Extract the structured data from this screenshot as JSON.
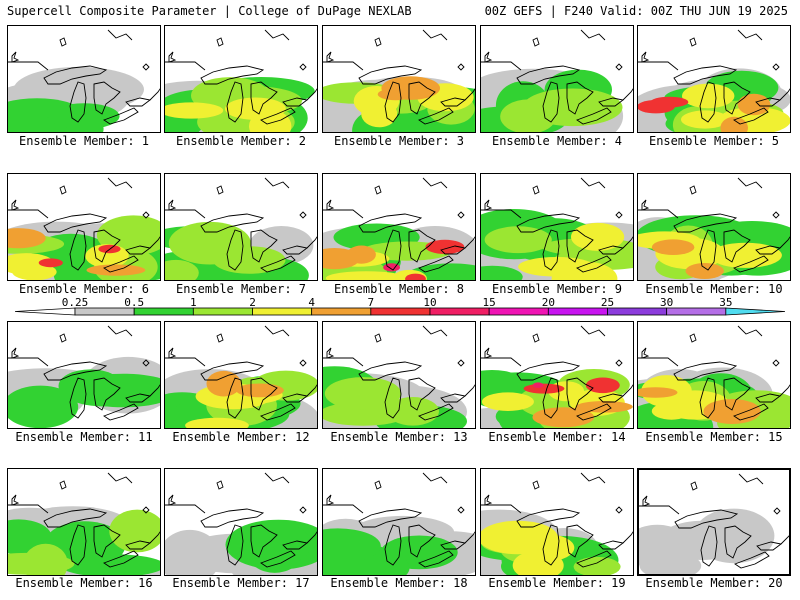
{
  "header": {
    "title": "Supercell Composite Parameter | College of DuPage NEXLAB",
    "valid": "00Z GEFS | F240 Valid: 00Z THU JUN 19 2025"
  },
  "members": [
    {
      "label": "Ensemble Member: 1",
      "intensity": 1
    },
    {
      "label": "Ensemble Member: 2",
      "intensity": 3
    },
    {
      "label": "Ensemble Member: 3",
      "intensity": 4
    },
    {
      "label": "Ensemble Member: 4",
      "intensity": 2
    },
    {
      "label": "Ensemble Member: 5",
      "intensity": 5
    },
    {
      "label": "Ensemble Member: 6",
      "intensity": 5
    },
    {
      "label": "Ensemble Member: 7",
      "intensity": 2
    },
    {
      "label": "Ensemble Member: 8",
      "intensity": 6
    },
    {
      "label": "Ensemble Member: 9",
      "intensity": 3
    },
    {
      "label": "Ensemble Member: 10",
      "intensity": 4
    },
    {
      "label": "Ensemble Member: 11",
      "intensity": 1
    },
    {
      "label": "Ensemble Member: 12",
      "intensity": 4
    },
    {
      "label": "Ensemble Member: 13",
      "intensity": 2
    },
    {
      "label": "Ensemble Member: 14",
      "intensity": 6
    },
    {
      "label": "Ensemble Member: 15",
      "intensity": 4
    },
    {
      "label": "Ensemble Member: 16",
      "intensity": 2
    },
    {
      "label": "Ensemble Member: 17",
      "intensity": 1
    },
    {
      "label": "Ensemble Member: 18",
      "intensity": 1
    },
    {
      "label": "Ensemble Member: 19",
      "intensity": 3
    },
    {
      "label": "Ensemble Member: 20",
      "intensity": 0
    }
  ],
  "colorbar": {
    "labels": [
      "0.25",
      "0.5",
      "1",
      "2",
      "4",
      "7",
      "10",
      "15",
      "20",
      "25",
      "30",
      "35"
    ],
    "colors": [
      "#c8c8c8",
      "#32d232",
      "#9be632",
      "#f0f032",
      "#f0a032",
      "#f03232",
      "#f01e64",
      "#f014b4",
      "#c814f0",
      "#8c3cdc",
      "#b46ee6",
      "#50dcf0"
    ]
  }
}
